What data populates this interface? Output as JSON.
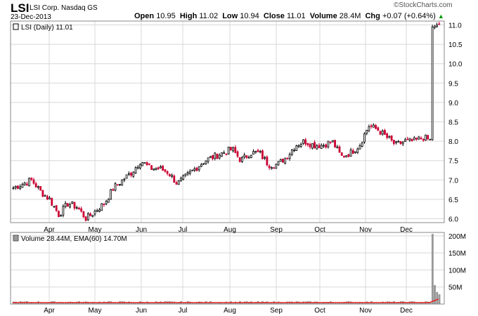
{
  "header": {
    "symbol": "LSI",
    "company": "LSI Corp.",
    "exchange": "Nasdaq GS",
    "date": "23-Dec-2013",
    "watermark": "©StockCharts.com",
    "ohlc": [
      {
        "label": "Open",
        "value": "10.95"
      },
      {
        "label": "High",
        "value": "11.02"
      },
      {
        "label": "Low",
        "value": "10.94"
      },
      {
        "label": "Close",
        "value": "11.01"
      },
      {
        "label": "Volume",
        "value": "28.4M"
      },
      {
        "label": "Chg",
        "value": "+0.07 (+0.64%)"
      }
    ],
    "chg_arrow": "▲"
  },
  "colors": {
    "up": "#000000",
    "down": "#cc0033",
    "grid": "#d8d8d8",
    "volume_bar": "#999999",
    "ema": "#ff0000",
    "price_box": "#000000"
  },
  "chart_data": [
    {
      "type": "candlestick",
      "legend": "LSI (Daily) 11.01",
      "legend_position": "top-left",
      "grid": true,
      "y_axis_side": "right",
      "ylim": [
        5.9,
        11.1
      ],
      "y_ticks": [
        "6.0",
        "6.5",
        "7.0",
        "7.5",
        "8.0",
        "8.5",
        "9.0",
        "9.5",
        "10.0",
        "10.5",
        "11.0"
      ],
      "x_tick_labels": [
        "Apr",
        "May",
        "Jun",
        "Jul",
        "Aug",
        "Sep",
        "Oct",
        "Nov",
        "Dec"
      ],
      "last_price_label": "11.0",
      "weekly_closes": [
        6.8,
        6.9,
        7.0,
        6.7,
        6.5,
        6.1,
        6.4,
        6.3,
        6.0,
        6.2,
        6.4,
        6.8,
        7.0,
        7.2,
        7.5,
        7.3,
        7.3,
        7.2,
        6.9,
        7.1,
        7.3,
        7.5,
        7.6,
        7.7,
        7.8,
        7.5,
        7.7,
        7.7,
        7.4,
        7.4,
        7.6,
        7.9,
        8.0,
        7.9,
        7.9,
        8.0,
        7.6,
        7.7,
        7.9,
        8.4,
        8.3,
        8.1,
        7.9,
        8.0,
        8.0,
        8.1,
        8.0,
        11.0
      ]
    },
    {
      "type": "bar",
      "legend": "Volume 28.44M, EMA(60) 14.70M",
      "legend_position": "top-left",
      "grid": true,
      "y_axis_side": "right",
      "ylim": [
        0,
        210
      ],
      "y_ticks": [
        "50M",
        "100M",
        "150M",
        "200M"
      ],
      "x_tick_labels": [
        "Apr",
        "May",
        "Jun",
        "Jul",
        "Aug",
        "Sep",
        "Oct",
        "Nov",
        "Dec"
      ],
      "spike_values_millions": [
        205,
        55,
        35,
        28
      ],
      "ema_millions": 14.7
    }
  ]
}
